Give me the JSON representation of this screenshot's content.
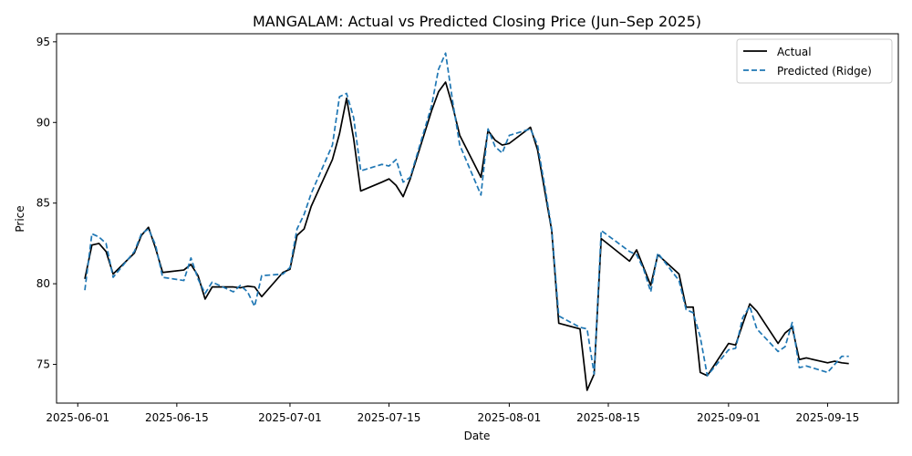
{
  "chart_data": {
    "type": "line",
    "title": "MANGALAM: Actual vs Predicted Closing Price (Jun–Sep 2025)",
    "xlabel": "Date",
    "ylabel": "Price",
    "xlim": [
      "2025-05-29",
      "2025-09-25"
    ],
    "ylim": [
      72.6,
      95.5
    ],
    "x_ticks": [
      "2025-06-01",
      "2025-06-15",
      "2025-07-01",
      "2025-07-15",
      "2025-08-01",
      "2025-08-15",
      "2025-09-01",
      "2025-09-15"
    ],
    "y_ticks": [
      75,
      80,
      85,
      90,
      95
    ],
    "grid": false,
    "legend_position": "top-right",
    "x": [
      "2025-06-02",
      "2025-06-03",
      "2025-06-04",
      "2025-06-05",
      "2025-06-06",
      "2025-06-09",
      "2025-06-10",
      "2025-06-11",
      "2025-06-12",
      "2025-06-13",
      "2025-06-16",
      "2025-06-17",
      "2025-06-18",
      "2025-06-19",
      "2025-06-20",
      "2025-06-23",
      "2025-06-24",
      "2025-06-25",
      "2025-06-26",
      "2025-06-27",
      "2025-06-30",
      "2025-07-01",
      "2025-07-02",
      "2025-07-03",
      "2025-07-04",
      "2025-07-07",
      "2025-07-08",
      "2025-07-09",
      "2025-07-10",
      "2025-07-11",
      "2025-07-14",
      "2025-07-15",
      "2025-07-16",
      "2025-07-17",
      "2025-07-18",
      "2025-07-21",
      "2025-07-22",
      "2025-07-23",
      "2025-07-24",
      "2025-07-25",
      "2025-07-28",
      "2025-07-29",
      "2025-07-30",
      "2025-07-31",
      "2025-08-01",
      "2025-08-04",
      "2025-08-05",
      "2025-08-06",
      "2025-08-07",
      "2025-08-08",
      "2025-08-11",
      "2025-08-12",
      "2025-08-13",
      "2025-08-14",
      "2025-08-18",
      "2025-08-19",
      "2025-08-20",
      "2025-08-21",
      "2025-08-22",
      "2025-08-25",
      "2025-08-26",
      "2025-08-27",
      "2025-08-28",
      "2025-08-29",
      "2025-09-01",
      "2025-09-02",
      "2025-09-03",
      "2025-09-04",
      "2025-09-05",
      "2025-09-08",
      "2025-09-09",
      "2025-09-10",
      "2025-09-11",
      "2025-09-12",
      "2025-09-15",
      "2025-09-16",
      "2025-09-17",
      "2025-09-18"
    ],
    "series": [
      {
        "name": "Actual",
        "color": "#000000",
        "dash": "solid",
        "values": [
          80.3,
          82.4,
          82.5,
          82.0,
          80.6,
          81.9,
          83.0,
          83.5,
          82.2,
          80.7,
          80.85,
          81.2,
          80.5,
          79.05,
          79.8,
          79.8,
          79.75,
          79.85,
          79.8,
          79.2,
          80.7,
          80.9,
          83.0,
          83.4,
          84.8,
          87.7,
          89.3,
          91.5,
          89.0,
          85.75,
          86.3,
          86.5,
          86.1,
          85.4,
          86.5,
          90.7,
          91.9,
          92.5,
          91.0,
          89.2,
          86.6,
          89.5,
          88.9,
          88.6,
          88.7,
          89.7,
          88.3,
          85.8,
          83.3,
          77.55,
          77.2,
          73.4,
          74.4,
          82.8,
          81.4,
          82.1,
          81.0,
          79.9,
          81.8,
          80.6,
          78.55,
          78.55,
          74.5,
          74.3,
          76.3,
          76.2,
          77.5,
          78.75,
          78.3,
          76.3,
          76.95,
          77.3,
          75.3,
          75.4,
          75.1,
          75.2,
          75.1,
          75.05
        ]
      },
      {
        "name": "Predicted (Ridge)",
        "color": "#1f77b4",
        "dash": "dashed",
        "values": [
          79.6,
          83.1,
          82.9,
          82.5,
          80.4,
          82.0,
          83.1,
          83.4,
          82.4,
          80.4,
          80.2,
          81.6,
          80.3,
          79.4,
          80.1,
          79.5,
          79.9,
          79.5,
          78.6,
          80.5,
          80.6,
          81.0,
          83.4,
          84.3,
          85.6,
          88.6,
          91.6,
          91.8,
          90.3,
          87.0,
          87.4,
          87.3,
          87.7,
          86.3,
          86.6,
          91.0,
          93.3,
          94.3,
          91.3,
          88.6,
          85.5,
          89.6,
          88.5,
          88.1,
          89.2,
          89.6,
          88.6,
          86.1,
          83.4,
          78.0,
          77.3,
          77.2,
          74.4,
          83.3,
          82.0,
          81.8,
          80.9,
          79.5,
          81.9,
          80.2,
          78.4,
          78.2,
          76.7,
          74.3,
          75.9,
          76.0,
          77.9,
          78.6,
          77.2,
          75.8,
          76.1,
          77.6,
          74.8,
          74.9,
          74.5,
          75.0,
          75.5,
          75.5
        ]
      }
    ]
  }
}
